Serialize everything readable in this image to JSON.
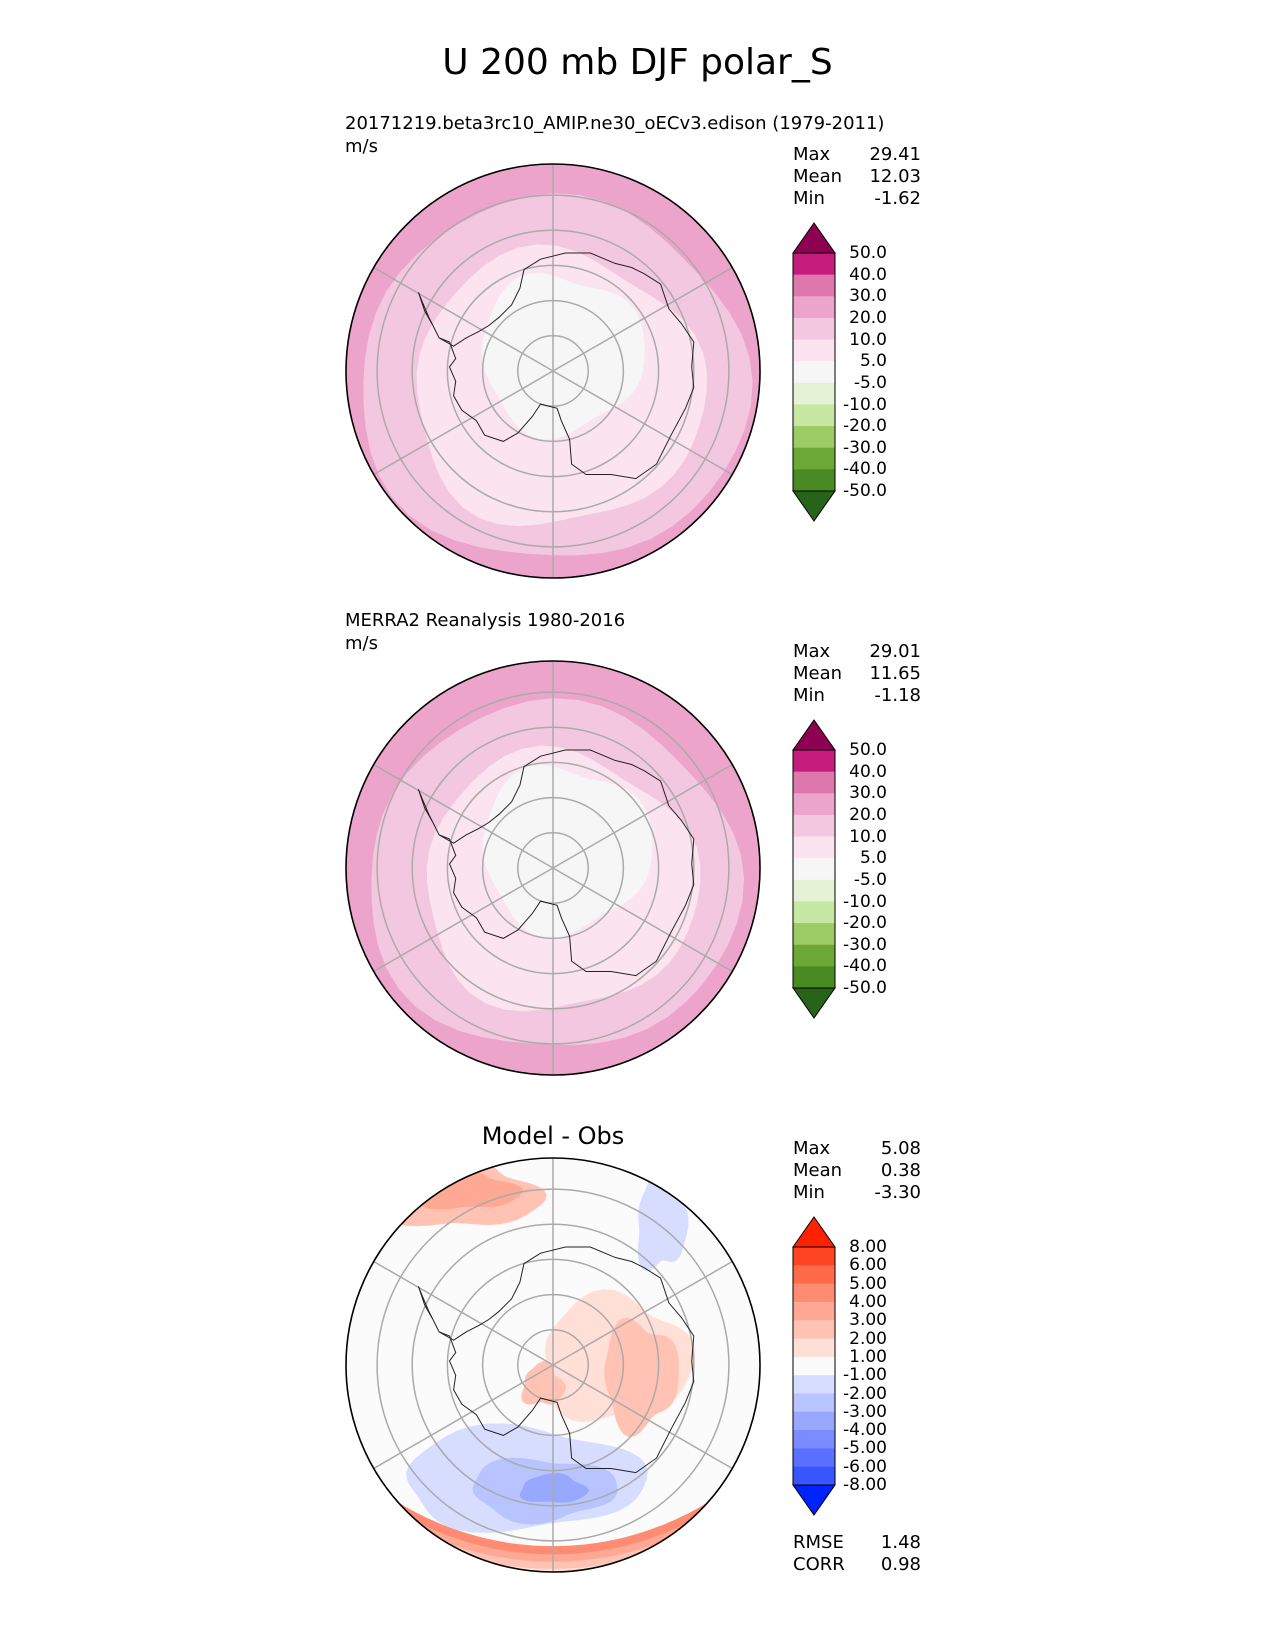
{
  "figure_title": "U 200 mb DJF polar_S",
  "chart_data": [
    {
      "type": "heatmap",
      "projection": "south-polar-stereographic",
      "title_left": "20171219.beta3rc10_AMIP.ne30_oECv3.edison (1979-2011)",
      "units": "m/s",
      "stats": [
        {
          "label": "Max",
          "value": "29.41"
        },
        {
          "label": "Mean",
          "value": "12.03"
        },
        {
          "label": "Min",
          "value": "-1.62"
        }
      ],
      "colorbar": {
        "levels": [
          "50.0",
          "40.0",
          "30.0",
          "20.0",
          "10.0",
          "5.0",
          "-5.0",
          "-10.0",
          "-20.0",
          "-30.0",
          "-40.0",
          "-50.0"
        ],
        "colors": [
          "#8e0152",
          "#c51b7d",
          "#de77ae",
          "#eca4cb",
          "#f4c7e0",
          "#fbe4ef",
          "#f6f6f6",
          "#e4f2d6",
          "#c7e8a2",
          "#9ccc63",
          "#6ca836",
          "#4a8a22",
          "#276419"
        ]
      },
      "field": [
        {
          "color": "#eca4cb",
          "mean_radius": 1.0
        },
        {
          "color": "#f4c7e0",
          "mean_radius": 0.94
        },
        {
          "color": "#fbe4ef",
          "mean_radius": 0.7
        },
        {
          "color": "#f6f6f6",
          "mean_radius": 0.48
        }
      ]
    },
    {
      "type": "heatmap",
      "projection": "south-polar-stereographic",
      "title_left": "MERRA2 Reanalysis 1980-2016",
      "units": "m/s",
      "stats": [
        {
          "label": "Max",
          "value": "29.01"
        },
        {
          "label": "Mean",
          "value": "11.65"
        },
        {
          "label": "Min",
          "value": "-1.18"
        }
      ],
      "colorbar": {
        "levels": [
          "50.0",
          "40.0",
          "30.0",
          "20.0",
          "10.0",
          "5.0",
          "-5.0",
          "-10.0",
          "-20.0",
          "-30.0",
          "-40.0",
          "-50.0"
        ],
        "colors": [
          "#8e0152",
          "#c51b7d",
          "#de77ae",
          "#eca4cb",
          "#f4c7e0",
          "#fbe4ef",
          "#f6f6f6",
          "#e4f2d6",
          "#c7e8a2",
          "#9ccc63",
          "#6ca836",
          "#4a8a22",
          "#276419"
        ]
      },
      "field": [
        {
          "color": "#eca4cb",
          "mean_radius": 1.0
        },
        {
          "color": "#f4c7e0",
          "mean_radius": 0.9
        },
        {
          "color": "#fbe4ef",
          "mean_radius": 0.66
        },
        {
          "color": "#f6f6f6",
          "mean_radius": 0.5
        }
      ]
    },
    {
      "type": "heatmap",
      "projection": "south-polar-stereographic",
      "title": "Model - Obs",
      "stats": [
        {
          "label": "Max",
          "value": "5.08"
        },
        {
          "label": "Mean",
          "value": "0.38"
        },
        {
          "label": "Min",
          "value": "-3.30"
        }
      ],
      "metrics": [
        {
          "label": "RMSE",
          "value": "1.48"
        },
        {
          "label": "CORR",
          "value": "0.98"
        }
      ],
      "colorbar": {
        "levels": [
          "8.00",
          "6.00",
          "5.00",
          "4.00",
          "3.00",
          "2.00",
          "1.00",
          "-1.00",
          "-2.00",
          "-3.00",
          "-4.00",
          "-5.00",
          "-6.00",
          "-8.00"
        ],
        "colors": [
          "#ff2200",
          "#ff4422",
          "#ff6a4a",
          "#ff8c72",
          "#ffa893",
          "#ffc2b3",
          "#ffdfd6",
          "#fbfbfb",
          "#d6ddff",
          "#b8c4ff",
          "#98a8ff",
          "#7a8cff",
          "#5c70ff",
          "#3855ff",
          "#0022ff"
        ]
      }
    }
  ],
  "icons": [
    "antarctica-coastline",
    "graticule"
  ]
}
